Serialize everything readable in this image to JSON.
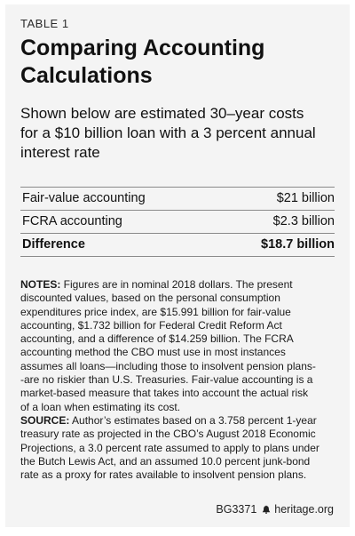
{
  "kicker": "TABLE 1",
  "title_lines": [
    "Comparing Accounting",
    "Calculations"
  ],
  "subtitle_lines": [
    "Shown below are estimated 30–year costs",
    "for a $10 billion loan with a 3 percent annual",
    "interest rate"
  ],
  "table": {
    "rows": [
      {
        "label": "Fair-value accounting",
        "value": "$21 billion"
      },
      {
        "label": "FCRA accounting",
        "value": "$2.3 billion"
      }
    ],
    "total": {
      "label": "Difference",
      "value": "$18.7 billion"
    }
  },
  "notes": {
    "notes_label": "NOTES:",
    "notes_first": " Figures are in nominal 2018 dollars. The present",
    "notes_lines": [
      "discounted values, based on the personal consumption",
      "expenditures price index, are $15.991 billion for fair-value",
      "accounting, $1.732 billion for Federal Credit Reform Act",
      "accounting, and a difference of $14.259 billion. The FCRA",
      "accounting method the CBO must use in most instances",
      "assumes all loans—including those to insolvent pension plans-",
      "-are no riskier than U.S. Treasuries. Fair-value accounting is a",
      "market-based measure that takes into account the actual risk",
      "of a loan when estimating its cost."
    ],
    "source_label": "SOURCE:",
    "source_first": " Author’s estimates based on a 3.758 percent 1-year",
    "source_lines": [
      "treasury rate as projected in the CBO’s August 2018 Economic",
      "Projections, a 3.0 percent rate assumed to apply to plans under",
      "the Butch Lewis Act, and an assumed 10.0 percent junk-bond",
      "rate as a proxy for rates available to insolvent pension plans."
    ]
  },
  "footer": {
    "code": "BG3371",
    "site": "heritage.org",
    "logo_icon": "liberty-bell-icon"
  }
}
